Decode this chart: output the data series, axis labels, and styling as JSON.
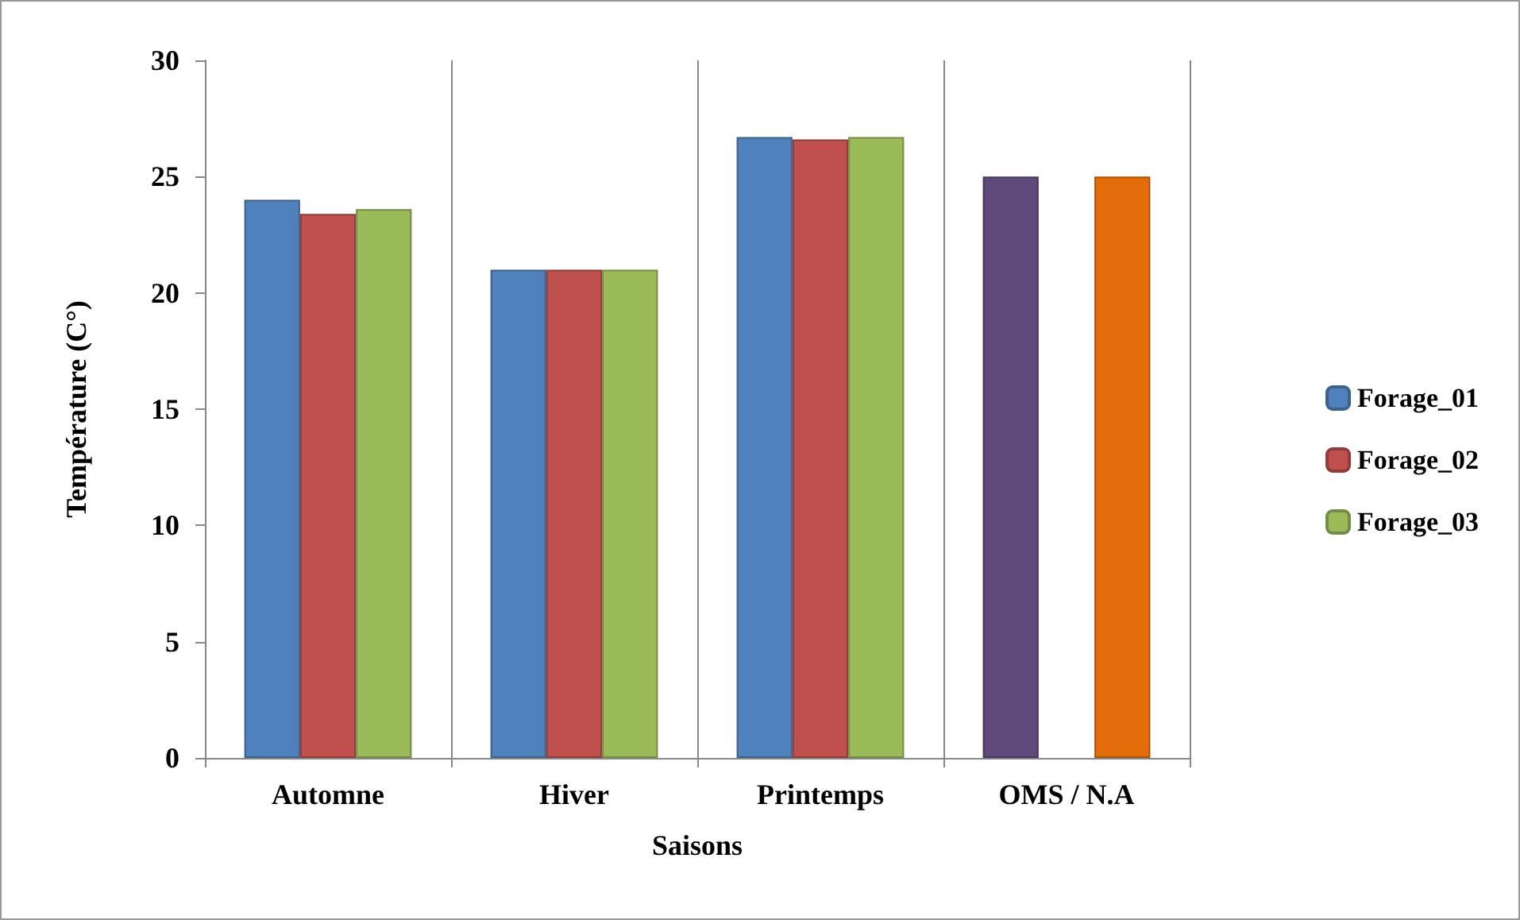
{
  "chart_data": {
    "type": "bar",
    "xlabel": "Saisons",
    "ylabel": "Température (C°)",
    "categories": [
      "Automne",
      "Hiver",
      "Printemps",
      "OMS / N.A"
    ],
    "series": [
      {
        "name": "Forage_01",
        "color": "#4f81bd",
        "colors": [
          "#4f81bd",
          "#4f81bd",
          "#4f81bd",
          "#604a7b"
        ],
        "values": [
          24,
          21,
          26.7,
          25
        ]
      },
      {
        "name": "Forage_02",
        "color": "#c0504d",
        "values": [
          23.4,
          21,
          26.6,
          null
        ]
      },
      {
        "name": "Forage_03",
        "color": "#9bbb59",
        "colors": [
          "#9bbb59",
          "#9bbb59",
          "#9bbb59",
          "#e46c0a"
        ],
        "values": [
          23.6,
          21,
          26.7,
          25
        ]
      }
    ],
    "ylim": [
      0,
      30
    ],
    "yticks": [
      0,
      5,
      10,
      15,
      20,
      25,
      30
    ],
    "grid": "x",
    "legend": "right"
  }
}
